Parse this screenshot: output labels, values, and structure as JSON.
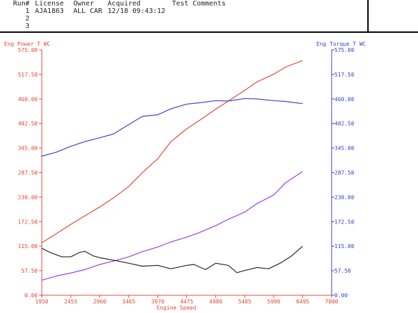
{
  "header": {
    "columns": [
      "Run#",
      "License",
      "Owner",
      "Acquired",
      "Test Comments"
    ],
    "rows": [
      {
        "run": "1",
        "license": "AJA1863",
        "owner": "ALL CAR",
        "acquired": "12/18 09:43:12"
      },
      {
        "run": "2"
      },
      {
        "run": "3"
      }
    ]
  },
  "chart_data": {
    "type": "line",
    "xlabel": "Engine Speed",
    "xlim": [
      1950,
      7000
    ],
    "x_ticks": [
      "1950",
      "2455",
      "2960",
      "3465",
      "3970",
      "4475",
      "4980",
      "5485",
      "5990",
      "6495",
      "7000"
    ],
    "y_left": {
      "label": "Eng Power T WC",
      "ylim": [
        0,
        575
      ],
      "ticks": [
        "0.00",
        "57.50",
        "115.00",
        "172.50",
        "230.00",
        "287.50",
        "345.00",
        "402.50",
        "460.00",
        "517.50",
        "575.00"
      ],
      "color": "#e0483a"
    },
    "y_right": {
      "label": "Eng Torque T WC",
      "ylim": [
        0,
        575
      ],
      "ticks": [
        "0.00",
        "57.50",
        "115.00",
        "172.50",
        "230.00",
        "287.50",
        "345.00",
        "402.50",
        "460.00",
        "517.50",
        "575.00"
      ],
      "color": "#3a40d0"
    },
    "grid": false,
    "series": [
      {
        "name": "Eng Power T WC",
        "color": "#e0483a",
        "x": [
          1950,
          2200,
          2455,
          2700,
          2960,
          3200,
          3465,
          3700,
          3970,
          4200,
          4475,
          4700,
          4980,
          5200,
          5485,
          5700,
          5990,
          6200,
          6495
        ],
        "y": [
          123,
          144,
          166,
          186,
          207,
          228,
          255,
          287,
          320,
          360,
          390,
          410,
          436,
          455,
          480,
          500,
          518,
          535,
          550
        ]
      },
      {
        "name": "Eng Torque T WC",
        "color": "#3a40d0",
        "x": [
          1950,
          2200,
          2455,
          2700,
          2960,
          3200,
          3465,
          3700,
          3970,
          4200,
          4475,
          4700,
          4980,
          5200,
          5485,
          5700,
          5990,
          6200,
          6495
        ],
        "y": [
          326,
          335,
          349,
          360,
          369,
          378,
          400,
          419,
          423,
          437,
          448,
          451,
          456,
          455,
          461,
          460,
          456,
          454,
          449
        ]
      },
      {
        "color": "#9b3ee0",
        "x": [
          1950,
          2200,
          2455,
          2700,
          2960,
          3200,
          3465,
          3700,
          3970,
          4200,
          4475,
          4700,
          4980,
          5200,
          5485,
          5700,
          5990,
          6200,
          6495
        ],
        "y": [
          35,
          45,
          52,
          60,
          72,
          80,
          90,
          102,
          113,
          125,
          136,
          147,
          163,
          178,
          195,
          215,
          235,
          264,
          290
        ]
      },
      {
        "color": "#222222",
        "x": [
          1950,
          2100,
          2300,
          2455,
          2600,
          2700,
          2850,
          2960,
          3200,
          3465,
          3700,
          3970,
          4200,
          4475,
          4600,
          4800,
          4980,
          5200,
          5350,
          5485,
          5700,
          5900,
          6100,
          6300,
          6495
        ],
        "y": [
          110,
          100,
          90,
          90,
          100,
          103,
          92,
          88,
          82,
          75,
          68,
          70,
          62,
          70,
          72,
          60,
          75,
          70,
          53,
          58,
          65,
          62,
          75,
          92,
          115
        ]
      }
    ]
  }
}
